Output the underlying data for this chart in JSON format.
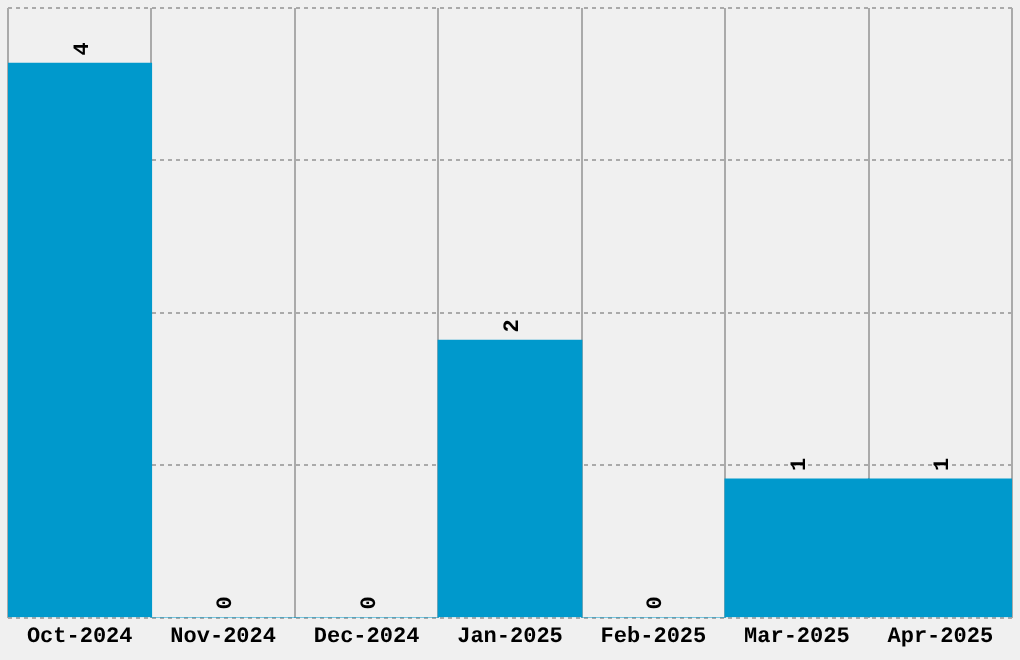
{
  "chart_data": {
    "type": "bar",
    "categories": [
      "Oct-2024",
      "Nov-2024",
      "Dec-2024",
      "Jan-2025",
      "Feb-2025",
      "Mar-2025",
      "Apr-2025"
    ],
    "values": [
      4,
      0,
      0,
      2,
      0,
      1,
      1
    ],
    "color": "#0099cc",
    "ylim": [
      0,
      4.4
    ],
    "yticks": [
      {
        "value": 0,
        "label": null
      },
      {
        "value": 1.1,
        "label": null
      },
      {
        "value": 2.2,
        "label": null
      },
      {
        "value": 3.3,
        "label": null
      },
      {
        "value": 4.4,
        "label": null
      }
    ],
    "grid": true,
    "data_labels": true,
    "tick_labels": "x",
    "legend": false
  }
}
